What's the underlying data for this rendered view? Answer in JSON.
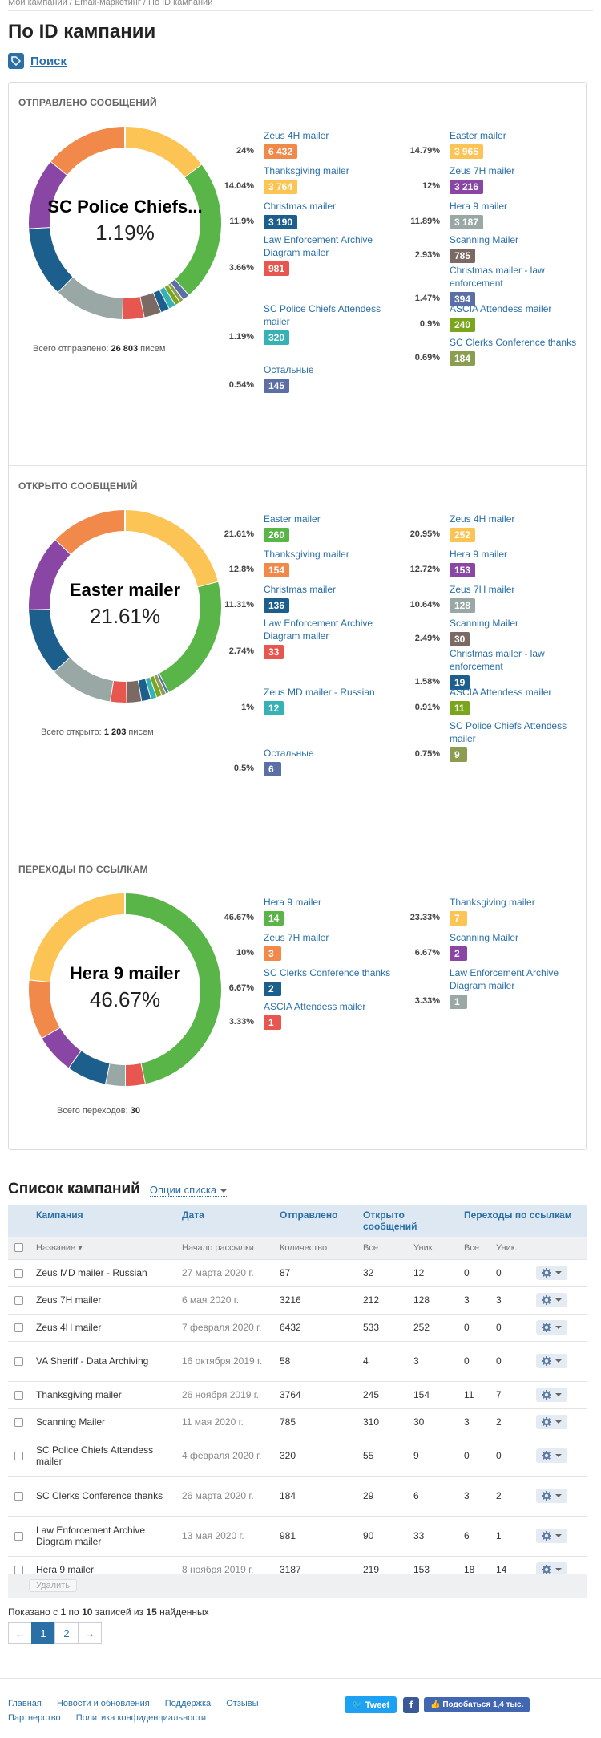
{
  "breadcrumb": "Мои кампании / Email-маркетинг / По ID кампании",
  "page_title": "По ID кампании",
  "search_label": "Поиск",
  "colors": {
    "orange": "#f0894a",
    "yellow": "#fcc355",
    "green": "#59b548",
    "red": "#e8574f",
    "gray": "#9aa8a5",
    "teal": "#36b1b6",
    "navy": "#1d5f8c",
    "purple": "#8a46a4",
    "olive": "#8a9d50",
    "brown": "#7b6963",
    "indigo": "#5b6ea5",
    "lime": "#7aa61d",
    "tealdark": "#1d5f8c",
    "accent": "#2a6fa6"
  },
  "chart_data": [
    {
      "type": "pie",
      "title": "ОТПРАВЛЕНО СООБЩЕНИЙ",
      "center_name": "SC Police Chiefs...",
      "center_pct": "1.19%",
      "total_label": "Всего отправлено:",
      "total_value": "26 803",
      "total_unit": "писем",
      "slices": [
        {
          "name": "Zeus 4H mailer",
          "pct": "24%",
          "count": "6 432",
          "value": 24,
          "color": "#f0894a"
        },
        {
          "name": "Thanksgiving mailer",
          "pct": "14.04%",
          "count": "3 764",
          "value": 14.04,
          "color": "#fcc355"
        },
        {
          "name": "Christmas mailer",
          "pct": "11.9%",
          "count": "3 190",
          "value": 11.9,
          "color": "#1d5f8c"
        },
        {
          "name": "Law Enforcement Archive Diagram mailer",
          "pct": "3.66%",
          "count": "981",
          "value": 3.66,
          "color": "#e8574f"
        },
        {
          "name": "SC Police Chiefs Attendess mailer",
          "pct": "1.19%",
          "count": "320",
          "value": 1.19,
          "color": "#36b1b6"
        },
        {
          "name": "Остальные",
          "pct": "0.54%",
          "count": "145",
          "value": 0.54,
          "color": "#5b6ea5"
        },
        {
          "name": "Easter mailer",
          "pct": "14.79%",
          "count": "3 965",
          "value": 14.79,
          "color": "#fcc355"
        },
        {
          "name": "Zeus 7H mailer",
          "pct": "12%",
          "count": "3 216",
          "value": 12,
          "color": "#8a46a4"
        },
        {
          "name": "Hera 9 mailer",
          "pct": "11.89%",
          "count": "3 187",
          "value": 11.89,
          "color": "#9aa8a5"
        },
        {
          "name": "Scanning Mailer",
          "pct": "2.93%",
          "count": "785",
          "value": 2.93,
          "color": "#7b6963"
        },
        {
          "name": "Christmas mailer - law enforcement",
          "pct": "1.47%",
          "count": "394",
          "value": 1.47,
          "color": "#5b6ea5"
        },
        {
          "name": "ASCIA Attendess mailer",
          "pct": "0.9%",
          "count": "240",
          "value": 0.9,
          "color": "#7aa61d"
        },
        {
          "name": "SC Clerks Conference thanks",
          "pct": "0.69%",
          "count": "184",
          "value": 0.69,
          "color": "#8a9d50"
        }
      ],
      "ring_order": [
        {
          "value": 14.79,
          "color": "#fcc355"
        },
        {
          "value": 24,
          "color": "#59b548"
        },
        {
          "value": 1.19,
          "color": "#5b6ea5"
        },
        {
          "value": 0.69,
          "color": "#8a9d50"
        },
        {
          "value": 0.9,
          "color": "#7aa61d"
        },
        {
          "value": 1.19,
          "color": "#36b1b6"
        },
        {
          "value": 1.47,
          "color": "#1d5f8c"
        },
        {
          "value": 2.93,
          "color": "#7b6963"
        },
        {
          "value": 3.66,
          "color": "#e8574f"
        },
        {
          "value": 11.89,
          "color": "#9aa8a5"
        },
        {
          "value": 11.9,
          "color": "#1d5f8c"
        },
        {
          "value": 12,
          "color": "#8a46a4"
        },
        {
          "value": 14.04,
          "color": "#f0894a"
        }
      ]
    },
    {
      "type": "pie",
      "title": "ОТКРЫТО СООБЩЕНИЙ",
      "center_name": "Easter mailer",
      "center_pct": "21.61%",
      "total_label": "Всего открыто:",
      "total_value": "1 203",
      "total_unit": "писем",
      "slices": [
        {
          "name": "Easter mailer",
          "pct": "21.61%",
          "count": "260",
          "value": 21.61,
          "color": "#59b548"
        },
        {
          "name": "Thanksgiving mailer",
          "pct": "12.8%",
          "count": "154",
          "value": 12.8,
          "color": "#f0894a"
        },
        {
          "name": "Christmas mailer",
          "pct": "11.31%",
          "count": "136",
          "value": 11.31,
          "color": "#1d5f8c"
        },
        {
          "name": "Law Enforcement Archive Diagram mailer",
          "pct": "2.74%",
          "count": "33",
          "value": 2.74,
          "color": "#e8574f"
        },
        {
          "name": "Zeus MD mailer - Russian",
          "pct": "1%",
          "count": "12",
          "value": 1,
          "color": "#36b1b6"
        },
        {
          "name": "Остальные",
          "pct": "0.5%",
          "count": "6",
          "value": 0.5,
          "color": "#5b6ea5"
        },
        {
          "name": "Zeus 4H mailer",
          "pct": "20.95%",
          "count": "252",
          "value": 20.95,
          "color": "#fcc355"
        },
        {
          "name": "Hera 9 mailer",
          "pct": "12.72%",
          "count": "153",
          "value": 12.72,
          "color": "#8a46a4"
        },
        {
          "name": "Zeus 7H mailer",
          "pct": "10.64%",
          "count": "128",
          "value": 10.64,
          "color": "#9aa8a5"
        },
        {
          "name": "Scanning Mailer",
          "pct": "2.49%",
          "count": "30",
          "value": 2.49,
          "color": "#7b6963"
        },
        {
          "name": "Christmas mailer - law enforcement",
          "pct": "1.58%",
          "count": "19",
          "value": 1.58,
          "color": "#1d5f8c"
        },
        {
          "name": "ASCIA Attendess mailer",
          "pct": "0.91%",
          "count": "11",
          "value": 0.91,
          "color": "#7aa61d"
        },
        {
          "name": "SC Police Chiefs Attendess mailer",
          "pct": "0.75%",
          "count": "9",
          "value": 0.75,
          "color": "#8a9d50"
        }
      ],
      "ring_order": [
        {
          "value": 20.95,
          "color": "#fcc355"
        },
        {
          "value": 21.61,
          "color": "#59b548"
        },
        {
          "value": 0.5,
          "color": "#5b6ea5"
        },
        {
          "value": 0.75,
          "color": "#8a9d50"
        },
        {
          "value": 0.91,
          "color": "#7aa61d"
        },
        {
          "value": 1,
          "color": "#36b1b6"
        },
        {
          "value": 1.58,
          "color": "#1d5f8c"
        },
        {
          "value": 2.49,
          "color": "#7b6963"
        },
        {
          "value": 2.74,
          "color": "#e8574f"
        },
        {
          "value": 10.64,
          "color": "#9aa8a5"
        },
        {
          "value": 11.31,
          "color": "#1d5f8c"
        },
        {
          "value": 12.72,
          "color": "#8a46a4"
        },
        {
          "value": 12.8,
          "color": "#f0894a"
        }
      ]
    },
    {
      "type": "pie",
      "title": "ПЕРЕХОДЫ ПО ССЫЛКАМ",
      "center_name": "Hera 9 mailer",
      "center_pct": "46.67%",
      "total_label": "Всего переходов:",
      "total_value": "30",
      "total_unit": "",
      "slices": [
        {
          "name": "Hera 9 mailer",
          "pct": "46.67%",
          "count": "14",
          "value": 46.67,
          "color": "#59b548"
        },
        {
          "name": "Zeus 7H mailer",
          "pct": "10%",
          "count": "3",
          "value": 10,
          "color": "#f0894a"
        },
        {
          "name": "SC Clerks Conference thanks",
          "pct": "6.67%",
          "count": "2",
          "value": 6.67,
          "color": "#1d5f8c"
        },
        {
          "name": "ASCIA Attendess mailer",
          "pct": "3.33%",
          "count": "1",
          "value": 3.33,
          "color": "#e8574f"
        },
        {
          "name": "Thanksgiving mailer",
          "pct": "23.33%",
          "count": "7",
          "value": 23.33,
          "color": "#fcc355"
        },
        {
          "name": "Scanning Mailer",
          "pct": "6.67%",
          "count": "2",
          "value": 6.67,
          "color": "#8a46a4"
        },
        {
          "name": "Law Enforcement Archive Diagram mailer",
          "pct": "3.33%",
          "count": "1",
          "value": 3.33,
          "color": "#9aa8a5"
        }
      ],
      "ring_order": [
        {
          "value": 46.67,
          "color": "#59b548"
        },
        {
          "value": 3.33,
          "color": "#e8574f"
        },
        {
          "value": 3.33,
          "color": "#9aa8a5"
        },
        {
          "value": 6.67,
          "color": "#1d5f8c"
        },
        {
          "value": 6.67,
          "color": "#8a46a4"
        },
        {
          "value": 10,
          "color": "#f0894a"
        },
        {
          "value": 23.33,
          "color": "#fcc355"
        }
      ]
    }
  ],
  "list": {
    "title": "Список кампаний",
    "options_label": "Опции списка",
    "headers": {
      "campaign": "Кампания",
      "date": "Дата",
      "sent": "Отправлено",
      "opened": "Открыто сообщений",
      "clicks": "Переходы по ссылкам"
    },
    "subheaders": {
      "name": "Название ▾",
      "start": "Начало рассылки",
      "qty": "Количество",
      "all1": "Все",
      "uniq1": "Уник.",
      "all2": "Все",
      "uniq2": "Уник."
    },
    "rows": [
      {
        "name": "Zeus MD mailer - Russian",
        "date": "27 марта 2020 г.",
        "sent": "87",
        "open_all": "32",
        "open_uniq": "12",
        "click_all": "0",
        "click_uniq": "0"
      },
      {
        "name": "Zeus 7H mailer",
        "date": "6 мая 2020 г.",
        "sent": "3216",
        "open_all": "212",
        "open_uniq": "128",
        "click_all": "3",
        "click_uniq": "3"
      },
      {
        "name": "Zeus 4H mailer",
        "date": "7 февраля 2020 г.",
        "sent": "6432",
        "open_all": "533",
        "open_uniq": "252",
        "click_all": "0",
        "click_uniq": "0"
      },
      {
        "name": "VA Sheriff - Data Archiving",
        "date": "16 октября 2019 г.",
        "sent": "58",
        "open_all": "4",
        "open_uniq": "3",
        "click_all": "0",
        "click_uniq": "0"
      },
      {
        "name": "Thanksgiving mailer",
        "date": "26 ноября 2019 г.",
        "sent": "3764",
        "open_all": "245",
        "open_uniq": "154",
        "click_all": "11",
        "click_uniq": "7"
      },
      {
        "name": "Scanning Mailer",
        "date": "11 мая 2020 г.",
        "sent": "785",
        "open_all": "310",
        "open_uniq": "30",
        "click_all": "3",
        "click_uniq": "2"
      },
      {
        "name": "SC Police Chiefs Attendess mailer",
        "date": "4 февраля 2020 г.",
        "sent": "320",
        "open_all": "55",
        "open_uniq": "9",
        "click_all": "0",
        "click_uniq": "0"
      },
      {
        "name": "SC Clerks Conference thanks",
        "date": "26 марта 2020 г.",
        "sent": "184",
        "open_all": "29",
        "open_uniq": "6",
        "click_all": "3",
        "click_uniq": "2"
      },
      {
        "name": "Law Enforcement Archive Diagram mailer",
        "date": "13 мая 2020 г.",
        "sent": "981",
        "open_all": "90",
        "open_uniq": "33",
        "click_all": "6",
        "click_uniq": "1"
      },
      {
        "name": "Hera 9 mailer",
        "date": "8 ноября 2019 г.",
        "sent": "3187",
        "open_all": "219",
        "open_uniq": "153",
        "click_all": "18",
        "click_uniq": "14"
      }
    ],
    "delete_label": "Удалить",
    "shown": {
      "pre": "Показано с",
      "from": "1",
      "mid": "по",
      "to": "10",
      "of": "записей из",
      "total": "15",
      "post": "найденных"
    },
    "pager": {
      "prev": "←",
      "p1": "1",
      "p2": "2",
      "next": "→"
    }
  },
  "footer": {
    "links": [
      "Главная",
      "Новости и обновления",
      "Поддержка",
      "Отзывы"
    ],
    "links2": [
      "Партнерство",
      "Политика конфиденциальности"
    ],
    "tweet": "Tweet",
    "fb_letter": "f",
    "fb_sub": "Подобаться 1,4 тыс."
  }
}
